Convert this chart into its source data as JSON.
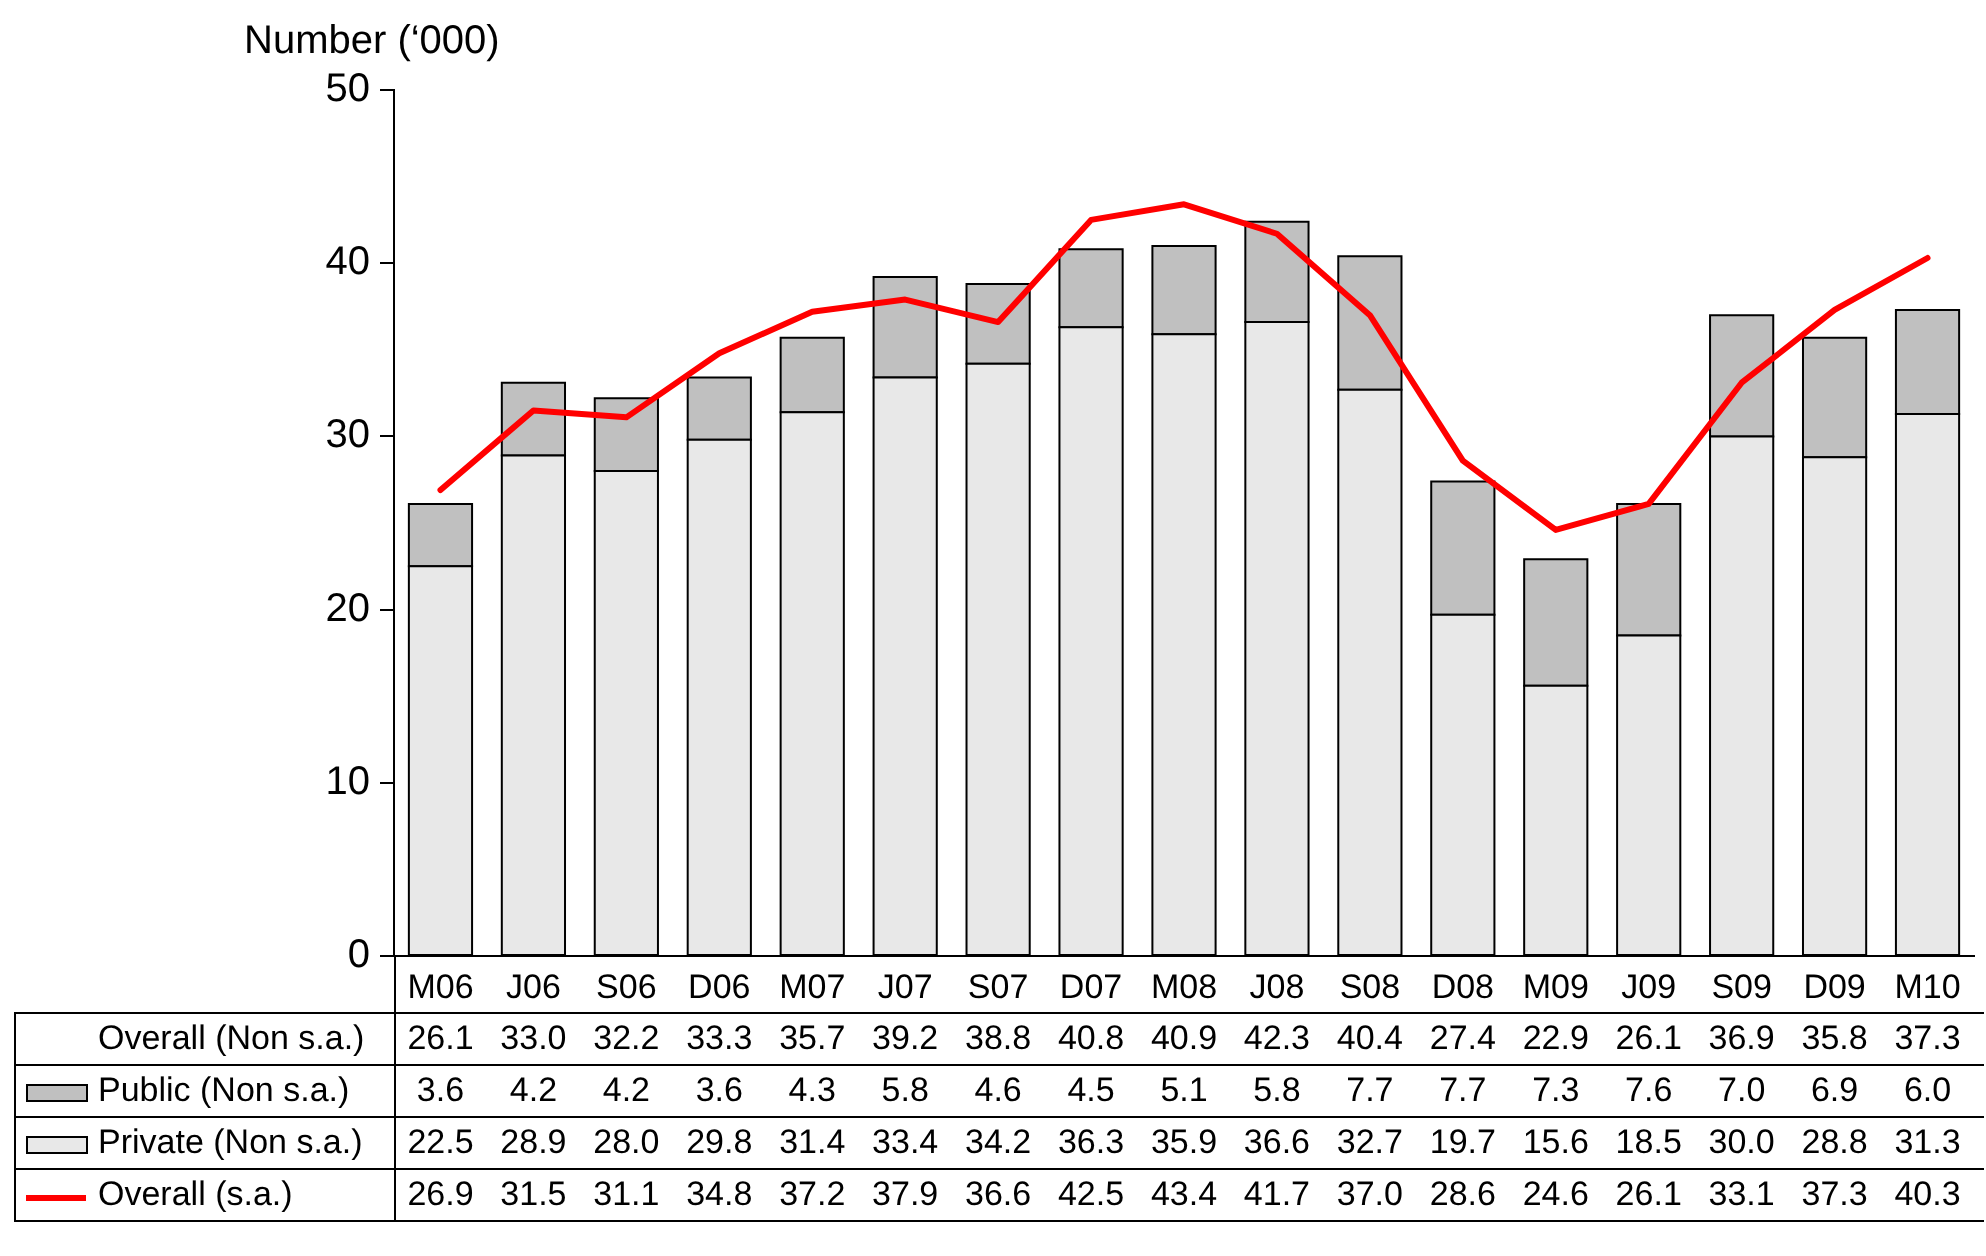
{
  "chart_data": {
    "type": "bar",
    "stacked": true,
    "ylabel": "Number (‘000)",
    "categories": [
      "M06",
      "J06",
      "S06",
      "D06",
      "M07",
      "J07",
      "S07",
      "D07",
      "M08",
      "J08",
      "S08",
      "D08",
      "M09",
      "J09",
      "S09",
      "D09",
      "M10"
    ],
    "ylim": [
      0,
      50
    ],
    "yticks": [
      0,
      10,
      20,
      30,
      40,
      50
    ],
    "legend": "bottom",
    "annotations": [
      "Overall (Non s.a.)"
    ],
    "totals": [
      "26.1",
      "33.0",
      "32.2",
      "33.3",
      "35.7",
      "39.2",
      "38.8",
      "40.8",
      "40.9",
      "42.3",
      "40.4",
      "27.4",
      "22.9",
      "26.1",
      "36.9",
      "35.8",
      "37.3"
    ],
    "series": [
      {
        "name": "Private (Non s.a.)",
        "color": "#e8e8e8",
        "values": [
          22.5,
          28.9,
          28.0,
          29.8,
          31.4,
          33.4,
          34.2,
          36.3,
          35.9,
          36.6,
          32.7,
          19.7,
          15.6,
          18.5,
          30.0,
          28.8,
          31.3
        ],
        "value_labels": [
          "22.5",
          "28.9",
          "28.0",
          "29.8",
          "31.4",
          "33.4",
          "34.2",
          "36.3",
          "35.9",
          "36.6",
          "32.7",
          "19.7",
          "15.6",
          "18.5",
          "30.0",
          "28.8",
          "31.3"
        ]
      },
      {
        "name": "Public (Non s.a.)",
        "color": "#c0c0c0",
        "values": [
          3.6,
          4.2,
          4.2,
          3.6,
          4.3,
          5.8,
          4.6,
          4.5,
          5.1,
          5.8,
          7.7,
          7.7,
          7.3,
          7.6,
          7.0,
          6.9,
          6.0
        ],
        "value_labels": [
          "3.6",
          "4.2",
          "4.2",
          "3.6",
          "4.3",
          "5.8",
          "4.6",
          "4.5",
          "5.1",
          "5.8",
          "7.7",
          "7.7",
          "7.3",
          "7.6",
          "7.0",
          "6.9",
          "6.0"
        ]
      },
      {
        "name": "Overall (s.a.)",
        "type": "line",
        "color": "#ff0000",
        "values": [
          26.9,
          31.5,
          31.1,
          34.8,
          37.2,
          37.9,
          36.6,
          42.5,
          43.4,
          41.7,
          37.0,
          28.6,
          24.6,
          26.1,
          33.1,
          37.3,
          40.3
        ],
        "value_labels": [
          "26.9",
          "31.5",
          "31.1",
          "34.8",
          "37.2",
          "37.9",
          "36.6",
          "42.5",
          "43.4",
          "41.7",
          "37.0",
          "28.6",
          "24.6",
          "26.1",
          "33.1",
          "37.3",
          "40.3"
        ]
      }
    ]
  }
}
